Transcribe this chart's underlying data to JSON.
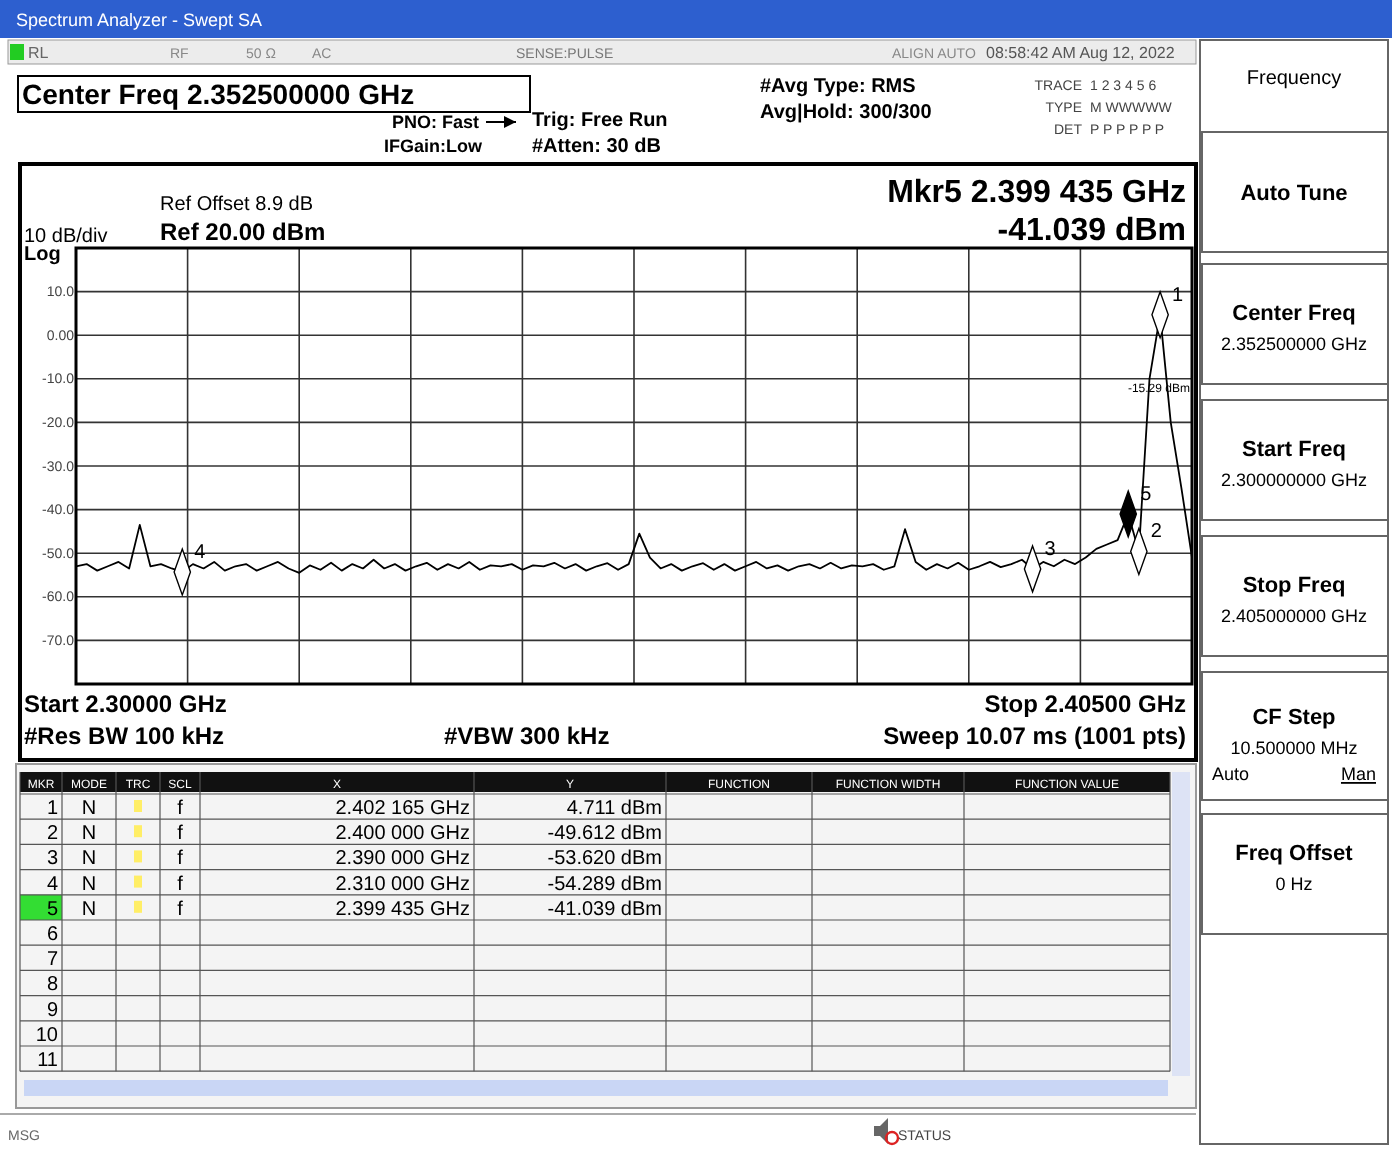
{
  "chart_data": {
    "type": "line",
    "title": "Spectrum Analyzer - Swept SA",
    "subtitle": "Center Freq 2.352500000 GHz",
    "categories": [
      null,
      null,
      null,
      null,
      null,
      null,
      null,
      null,
      null,
      null,
      null,
      null,
      null,
      null,
      null,
      null,
      null,
      null,
      null,
      null,
      null,
      null,
      null,
      null,
      null,
      null,
      null,
      null,
      null,
      null,
      null,
      null,
      null,
      null,
      null,
      null,
      null,
      null,
      null,
      null,
      null,
      null,
      null,
      null,
      null,
      null,
      null,
      null,
      null,
      null,
      null,
      null,
      null,
      null,
      null,
      null,
      null,
      null,
      null,
      null,
      null,
      null,
      null,
      null,
      null,
      null,
      null,
      null,
      null,
      null,
      null,
      null,
      null,
      null,
      null,
      null,
      null,
      null,
      null,
      null,
      null,
      null,
      null,
      null,
      null,
      null,
      null,
      null,
      null,
      null,
      null,
      null,
      null,
      null,
      null,
      null,
      null,
      null,
      null,
      null,
      null,
      null,
      null,
      null,
      null,
      null
    ],
    "ylim": [
      -80,
      20
    ],
    "yticks": [
      {
        "value": 20,
        "label": null
      },
      {
        "value": 10,
        "label": "10.0"
      },
      {
        "value": 0,
        "label": "0.00"
      },
      {
        "value": -10,
        "label": "-10.0"
      },
      {
        "value": -20,
        "label": "-20.0"
      },
      {
        "value": -30,
        "label": "-30.0"
      },
      {
        "value": -40,
        "label": "-40.0"
      },
      {
        "value": -50,
        "label": "-50.0"
      },
      {
        "value": -60,
        "label": "-60.0"
      },
      {
        "value": -70,
        "label": "-70.0"
      },
      {
        "value": -80,
        "label": null
      }
    ],
    "grid": true,
    "tick_labels": "y",
    "line_style": "solid",
    "series": [
      {
        "color": "#000000",
        "values": [
          -53,
          -52.5,
          -54,
          -53,
          -52,
          -53.5,
          -43.5,
          -53,
          -52.5,
          -53.5,
          -54.3,
          -52.5,
          -53.5,
          -52,
          -54,
          -53,
          -52.5,
          -54,
          -53,
          -52,
          -53.5,
          -54.5,
          -52.8,
          -53.8,
          -52.2,
          -54,
          -52.5,
          -53.5,
          -51.5,
          -53.5,
          -52.5,
          -54,
          -53,
          -52.2,
          -53.8,
          -52.5,
          -53.5,
          -52,
          -53.8,
          -52.8,
          -53,
          -52.5,
          -53.8,
          -52.8,
          -53,
          -52.2,
          -53.5,
          -52.5,
          -54,
          -53,
          -52.3,
          -53.8,
          -52.5,
          -45.5,
          -51,
          -53.5,
          -52.5,
          -54,
          -53,
          -52.3,
          -53.8,
          -52.5,
          -54,
          -53,
          -52,
          -53.5,
          -52.8,
          -54,
          -53,
          -52.5,
          -53.5,
          -52.2,
          -53.5,
          -52.8,
          -53,
          -52.5,
          -53.8,
          -53,
          -44.5,
          -52,
          -53.8,
          -52.5,
          -53.5,
          -52.2,
          -53.8,
          -53,
          -52,
          -53.2,
          -52.5,
          -51.5,
          -53.6,
          -52,
          -53,
          -51.5,
          -52.5,
          -51,
          -49,
          -48,
          -47,
          -41,
          -49.6,
          -10,
          4.7,
          -20,
          -35,
          -51
        ]
      },
      {
        "type": "scatter",
        "marker": "diamond",
        "color": "#000000",
        "values": [
          null,
          null,
          null,
          null,
          null,
          null,
          null,
          null,
          null,
          null,
          -54.3,
          null,
          null,
          null,
          null,
          null,
          null,
          null,
          null,
          null,
          null,
          null,
          null,
          null,
          null,
          null,
          null,
          null,
          null,
          null,
          null,
          null,
          null,
          null,
          null,
          null,
          null,
          null,
          null,
          null,
          null,
          null,
          null,
          null,
          null,
          null,
          null,
          null,
          null,
          null,
          null,
          null,
          null,
          null,
          null,
          null,
          null,
          null,
          null,
          null,
          null,
          null,
          null,
          null,
          null,
          null,
          null,
          null,
          null,
          null,
          null,
          null,
          null,
          null,
          null,
          null,
          null,
          null,
          null,
          null,
          null,
          null,
          null,
          null,
          null,
          null,
          null,
          null,
          null,
          null,
          -53.6,
          null,
          null,
          null,
          null,
          null,
          null,
          null,
          null,
          -41.0,
          -49.6,
          null,
          4.7,
          null,
          null,
          null
        ],
        "colors": [
          null,
          null,
          null,
          null,
          null,
          null,
          null,
          null,
          null,
          null,
          "#ffffff",
          null,
          null,
          null,
          null,
          null,
          null,
          null,
          null,
          null,
          null,
          null,
          null,
          null,
          null,
          null,
          null,
          null,
          null,
          null,
          null,
          null,
          null,
          null,
          null,
          null,
          null,
          null,
          null,
          null,
          null,
          null,
          null,
          null,
          null,
          null,
          null,
          null,
          null,
          null,
          null,
          null,
          null,
          null,
          null,
          null,
          null,
          null,
          null,
          null,
          null,
          null,
          null,
          null,
          null,
          null,
          null,
          null,
          null,
          null,
          null,
          null,
          null,
          null,
          null,
          null,
          null,
          null,
          null,
          null,
          null,
          null,
          null,
          null,
          null,
          null,
          null,
          null,
          null,
          null,
          "#ffffff",
          null,
          null,
          null,
          null,
          null,
          null,
          null,
          null,
          "#000000",
          "#ffffff",
          null,
          "#ffffff",
          null,
          null,
          null
        ]
      }
    ],
    "annotations": [
      "RL",
      "RF",
      "50 Ω",
      "AC",
      "SENSE:PULSE",
      "ALIGN AUTO",
      "08:58:42 AM Aug 12, 2022",
      "PNO: Fast",
      "IFGain:Low",
      "Trig: Free Run",
      "#Atten: 30 dB",
      "#Avg Type: RMS",
      "Avg|Hold: 300/300",
      "TRACE",
      "1 2 3 4 5 6",
      "TYPE",
      "M WWWWW",
      "DET",
      "P P P P P P",
      "Ref Offset 8.9 dB",
      "Ref 20.00 dBm",
      "10 dB/div",
      "Log",
      "Mkr5 2.399 435 GHz",
      "-41.039 dBm",
      "Start 2.30000 GHz",
      "Stop 2.40500 GHz",
      "#Res BW 100 kHz",
      "#VBW 300 kHz",
      "Sweep  10.07 ms (1001 pts)",
      "MKR",
      "MODE",
      "TRC",
      "SCL",
      "X",
      "Y",
      "FUNCTION",
      "FUNCTION WIDTH",
      "FUNCTION VALUE",
      "1",
      "N",
      "f",
      "2.402 165 GHz",
      "4.711 dBm",
      "2",
      "N",
      "f",
      "2.400 000 GHz",
      "-49.612 dBm",
      "3",
      "N",
      "f",
      "2.390 000 GHz",
      "-53.620 dBm",
      "4",
      "N",
      "f",
      "2.310 000 GHz",
      "-54.289 dBm",
      "5",
      "N",
      "f",
      "2.399 435 GHz",
      "-41.039 dBm",
      "6",
      "7",
      "8",
      "9",
      "10",
      "11",
      "MSG",
      "STATUS",
      "Frequency",
      "Auto Tune",
      "Center Freq",
      "2.352500000 GHz",
      "Start Freq",
      "2.300000000 GHz",
      "Stop Freq",
      "2.405000000 GHz",
      "CF Step",
      "10.500000 MHz",
      "Auto",
      "Man",
      "Freq Offset",
      "0 Hz",
      "-15.29 dBm",
      "4",
      "3",
      "5",
      "2",
      "1"
    ]
  }
}
